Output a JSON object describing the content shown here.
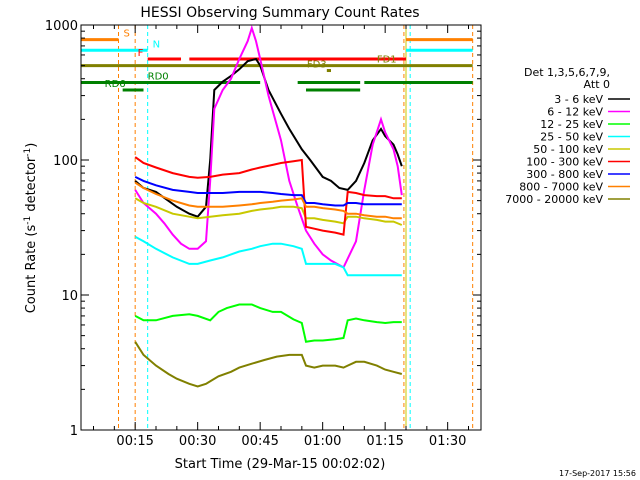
{
  "chart_data": {
    "type": "line",
    "title": "HESSI Observing Summary Count Rates",
    "xlabel": "Start Time (29-Mar-15 00:02:02)",
    "ylabel": "Count Rate (s⁻¹ detector⁻¹)",
    "ylabel_main": "Count Rate (s",
    "ylabel_sup1": "-1",
    "ylabel_mid": " detector",
    "ylabel_sup2": "-1",
    "ylabel_end": ")",
    "xlim_minutes": [
      2,
      98
    ],
    "ylim": [
      1,
      1000
    ],
    "yscale": "log",
    "xticks": [
      {
        "label": "00:15",
        "min": 15
      },
      {
        "label": "00:30",
        "min": 30
      },
      {
        "label": "00:45",
        "min": 45
      },
      {
        "label": "01:00",
        "min": 60
      },
      {
        "label": "01:15",
        "min": 75
      },
      {
        "label": "01:30",
        "min": 90
      }
    ],
    "yticks": [
      {
        "label": "1",
        "value": 1
      },
      {
        "label": "10",
        "value": 10
      },
      {
        "label": "100",
        "value": 100
      },
      {
        "label": "1000",
        "value": 1000
      }
    ],
    "legend_title": [
      "Det 1,3,5,6,7,9,",
      "Att 0"
    ],
    "timestamp": "17-Sep-2017 15:56",
    "series": [
      {
        "name": "3 - 6 keV",
        "color": "#000000",
        "points": [
          [
            15,
            70
          ],
          [
            17,
            62
          ],
          [
            20,
            58
          ],
          [
            25,
            45
          ],
          [
            28,
            40
          ],
          [
            30,
            38
          ],
          [
            32,
            45
          ],
          [
            33,
            100
          ],
          [
            34,
            330
          ],
          [
            36,
            380
          ],
          [
            38,
            420
          ],
          [
            40,
            470
          ],
          [
            42,
            540
          ],
          [
            44,
            560
          ],
          [
            45,
            500
          ],
          [
            47,
            330
          ],
          [
            50,
            220
          ],
          [
            52,
            170
          ],
          [
            55,
            120
          ],
          [
            57,
            100
          ],
          [
            60,
            75
          ],
          [
            62,
            70
          ],
          [
            64,
            62
          ],
          [
            66,
            60
          ],
          [
            68,
            70
          ],
          [
            70,
            95
          ],
          [
            72,
            140
          ],
          [
            74,
            170
          ],
          [
            75,
            150
          ],
          [
            77,
            130
          ],
          [
            78,
            110
          ],
          [
            79,
            90
          ]
        ]
      },
      {
        "name": "6 - 12 keV",
        "color": "#ff00ff",
        "points": [
          [
            15,
            60
          ],
          [
            17,
            48
          ],
          [
            20,
            40
          ],
          [
            22,
            34
          ],
          [
            24,
            28
          ],
          [
            26,
            24
          ],
          [
            28,
            22
          ],
          [
            30,
            22
          ],
          [
            32,
            25
          ],
          [
            33,
            70
          ],
          [
            34,
            240
          ],
          [
            36,
            330
          ],
          [
            38,
            400
          ],
          [
            40,
            560
          ],
          [
            42,
            760
          ],
          [
            43,
            950
          ],
          [
            44,
            760
          ],
          [
            45,
            560
          ],
          [
            47,
            300
          ],
          [
            50,
            140
          ],
          [
            52,
            70
          ],
          [
            54,
            45
          ],
          [
            56,
            30
          ],
          [
            58,
            24
          ],
          [
            60,
            20
          ],
          [
            62,
            18
          ],
          [
            65,
            16
          ],
          [
            68,
            25
          ],
          [
            70,
            60
          ],
          [
            72,
            130
          ],
          [
            74,
            200
          ],
          [
            75,
            160
          ],
          [
            77,
            120
          ],
          [
            78,
            90
          ],
          [
            79,
            55
          ]
        ]
      },
      {
        "name": "12 - 25 keV",
        "color": "#00ff00",
        "points": [
          [
            15,
            7
          ],
          [
            17,
            6.5
          ],
          [
            20,
            6.5
          ],
          [
            24,
            7
          ],
          [
            28,
            7.2
          ],
          [
            30,
            7
          ],
          [
            33,
            6.5
          ],
          [
            35,
            7.5
          ],
          [
            37,
            8
          ],
          [
            40,
            8.5
          ],
          [
            43,
            8.5
          ],
          [
            45,
            8
          ],
          [
            48,
            7.5
          ],
          [
            50,
            7.5
          ],
          [
            53,
            6.6
          ],
          [
            55,
            6.2
          ],
          [
            56,
            4.5
          ],
          [
            58,
            4.6
          ],
          [
            60,
            4.6
          ],
          [
            63,
            4.7
          ],
          [
            65,
            4.8
          ],
          [
            66,
            6.5
          ],
          [
            68,
            6.7
          ],
          [
            70,
            6.5
          ],
          [
            73,
            6.3
          ],
          [
            75,
            6.2
          ],
          [
            77,
            6.3
          ],
          [
            79,
            6.3
          ]
        ]
      },
      {
        "name": "25 - 50 keV",
        "color": "#00ffff",
        "points": [
          [
            15,
            27
          ],
          [
            17,
            25
          ],
          [
            20,
            22
          ],
          [
            24,
            19
          ],
          [
            28,
            17
          ],
          [
            30,
            17
          ],
          [
            33,
            18
          ],
          [
            36,
            19
          ],
          [
            40,
            21
          ],
          [
            43,
            22
          ],
          [
            45,
            23
          ],
          [
            48,
            24
          ],
          [
            50,
            24
          ],
          [
            53,
            23
          ],
          [
            55,
            22
          ],
          [
            56,
            17
          ],
          [
            58,
            17
          ],
          [
            60,
            17
          ],
          [
            63,
            17
          ],
          [
            65,
            16
          ],
          [
            66,
            14
          ],
          [
            68,
            14
          ],
          [
            70,
            14
          ],
          [
            73,
            14
          ],
          [
            75,
            14
          ],
          [
            77,
            14
          ],
          [
            79,
            14
          ]
        ]
      },
      {
        "name": "50 - 100 keV",
        "color": "#c8c800",
        "points": [
          [
            15,
            52
          ],
          [
            17,
            48
          ],
          [
            20,
            45
          ],
          [
            24,
            40
          ],
          [
            28,
            38
          ],
          [
            30,
            37
          ],
          [
            33,
            38
          ],
          [
            36,
            39
          ],
          [
            40,
            40
          ],
          [
            43,
            42
          ],
          [
            45,
            43
          ],
          [
            48,
            44
          ],
          [
            50,
            45
          ],
          [
            53,
            45
          ],
          [
            55,
            44
          ],
          [
            56,
            37
          ],
          [
            58,
            37
          ],
          [
            60,
            36
          ],
          [
            63,
            35
          ],
          [
            65,
            34
          ],
          [
            66,
            38
          ],
          [
            68,
            38
          ],
          [
            70,
            37
          ],
          [
            73,
            36
          ],
          [
            75,
            35
          ],
          [
            77,
            35
          ],
          [
            79,
            33
          ]
        ]
      },
      {
        "name": "100 - 300 keV",
        "color": "#ff0000",
        "points": [
          [
            15,
            105
          ],
          [
            17,
            95
          ],
          [
            20,
            88
          ],
          [
            24,
            80
          ],
          [
            28,
            75
          ],
          [
            30,
            74
          ],
          [
            33,
            75
          ],
          [
            36,
            78
          ],
          [
            40,
            80
          ],
          [
            43,
            85
          ],
          [
            45,
            88
          ],
          [
            48,
            92
          ],
          [
            50,
            95
          ],
          [
            53,
            98
          ],
          [
            55,
            100
          ],
          [
            56,
            32
          ],
          [
            58,
            31
          ],
          [
            60,
            30
          ],
          [
            63,
            29
          ],
          [
            65,
            28
          ],
          [
            66,
            58
          ],
          [
            68,
            57
          ],
          [
            70,
            55
          ],
          [
            73,
            54
          ],
          [
            75,
            54
          ],
          [
            77,
            52
          ],
          [
            79,
            52
          ]
        ]
      },
      {
        "name": "300 - 800 keV",
        "color": "#0000ff",
        "points": [
          [
            15,
            75
          ],
          [
            17,
            70
          ],
          [
            20,
            65
          ],
          [
            24,
            60
          ],
          [
            28,
            58
          ],
          [
            30,
            57
          ],
          [
            33,
            57
          ],
          [
            36,
            57
          ],
          [
            40,
            58
          ],
          [
            43,
            58
          ],
          [
            45,
            58
          ],
          [
            48,
            57
          ],
          [
            50,
            56
          ],
          [
            53,
            55
          ],
          [
            55,
            55
          ],
          [
            56,
            48
          ],
          [
            58,
            48
          ],
          [
            60,
            47
          ],
          [
            63,
            46
          ],
          [
            65,
            46
          ],
          [
            66,
            48
          ],
          [
            68,
            48
          ],
          [
            70,
            47
          ],
          [
            73,
            47
          ],
          [
            75,
            47
          ],
          [
            77,
            47
          ],
          [
            79,
            47
          ]
        ]
      },
      {
        "name": "800 - 7000 keV",
        "color": "#ff8000",
        "points": [
          [
            15,
            68
          ],
          [
            17,
            62
          ],
          [
            20,
            56
          ],
          [
            24,
            50
          ],
          [
            28,
            46
          ],
          [
            30,
            45
          ],
          [
            33,
            45
          ],
          [
            36,
            45
          ],
          [
            40,
            46
          ],
          [
            43,
            47
          ],
          [
            45,
            48
          ],
          [
            48,
            49
          ],
          [
            50,
            50
          ],
          [
            53,
            51
          ],
          [
            55,
            52
          ],
          [
            56,
            45
          ],
          [
            58,
            45
          ],
          [
            60,
            44
          ],
          [
            63,
            43
          ],
          [
            65,
            42
          ],
          [
            66,
            40
          ],
          [
            68,
            40
          ],
          [
            70,
            39
          ],
          [
            73,
            38
          ],
          [
            75,
            38
          ],
          [
            77,
            37
          ],
          [
            79,
            37
          ]
        ]
      },
      {
        "name": "7000 - 20000 keV",
        "color": "#808000",
        "points": [
          [
            15,
            4.5
          ],
          [
            17,
            3.6
          ],
          [
            20,
            3
          ],
          [
            23,
            2.6
          ],
          [
            25,
            2.4
          ],
          [
            28,
            2.2
          ],
          [
            30,
            2.1
          ],
          [
            32,
            2.2
          ],
          [
            35,
            2.5
          ],
          [
            38,
            2.7
          ],
          [
            40,
            2.9
          ],
          [
            43,
            3.1
          ],
          [
            46,
            3.3
          ],
          [
            49,
            3.5
          ],
          [
            52,
            3.6
          ],
          [
            55,
            3.6
          ],
          [
            56,
            3
          ],
          [
            58,
            2.9
          ],
          [
            60,
            3
          ],
          [
            63,
            3
          ],
          [
            65,
            2.9
          ],
          [
            66,
            3
          ],
          [
            68,
            3.2
          ],
          [
            70,
            3.2
          ],
          [
            73,
            3
          ],
          [
            75,
            2.8
          ],
          [
            77,
            2.7
          ],
          [
            79,
            2.6
          ]
        ]
      }
    ],
    "flags": [
      {
        "label": "S",
        "color": "#ff8000",
        "y": 780,
        "segments": [
          [
            2,
            11
          ],
          [
            80,
            96
          ]
        ]
      },
      {
        "label": "N",
        "color": "#00ffff",
        "y": 650,
        "segments": [
          [
            2,
            18
          ],
          [
            80,
            96
          ]
        ]
      },
      {
        "label": "F",
        "color": "#ff0000",
        "y": 560,
        "segments": [
          [
            18,
            26
          ],
          [
            28,
            80
          ]
        ]
      },
      {
        "label": "FD1",
        "color": "#808000",
        "y": 500,
        "segments": [
          [
            2,
            96
          ]
        ]
      },
      {
        "label": "FD3",
        "color": "#808000",
        "y": 460,
        "segments": [
          [
            61,
            62
          ]
        ]
      },
      {
        "label": "RD0",
        "color": "#008000",
        "y": 375,
        "segments": [
          [
            2,
            45
          ],
          [
            54,
            69
          ],
          [
            70,
            96
          ]
        ]
      },
      {
        "label": "RD6",
        "color": "#008000",
        "y": 330,
        "segments": [
          [
            12,
            17
          ],
          [
            56,
            69
          ]
        ]
      }
    ],
    "vlines": [
      {
        "minute": 11,
        "color": "#ff8000"
      },
      {
        "minute": 15,
        "color": "#ff8000"
      },
      {
        "minute": 18,
        "color": "#00ffff"
      },
      {
        "minute": 79.5,
        "color": "#ff8000"
      },
      {
        "minute": 80,
        "color": "#c8c800"
      },
      {
        "minute": 81,
        "color": "#00ffff"
      },
      {
        "minute": 96,
        "color": "#ff8000"
      }
    ]
  }
}
